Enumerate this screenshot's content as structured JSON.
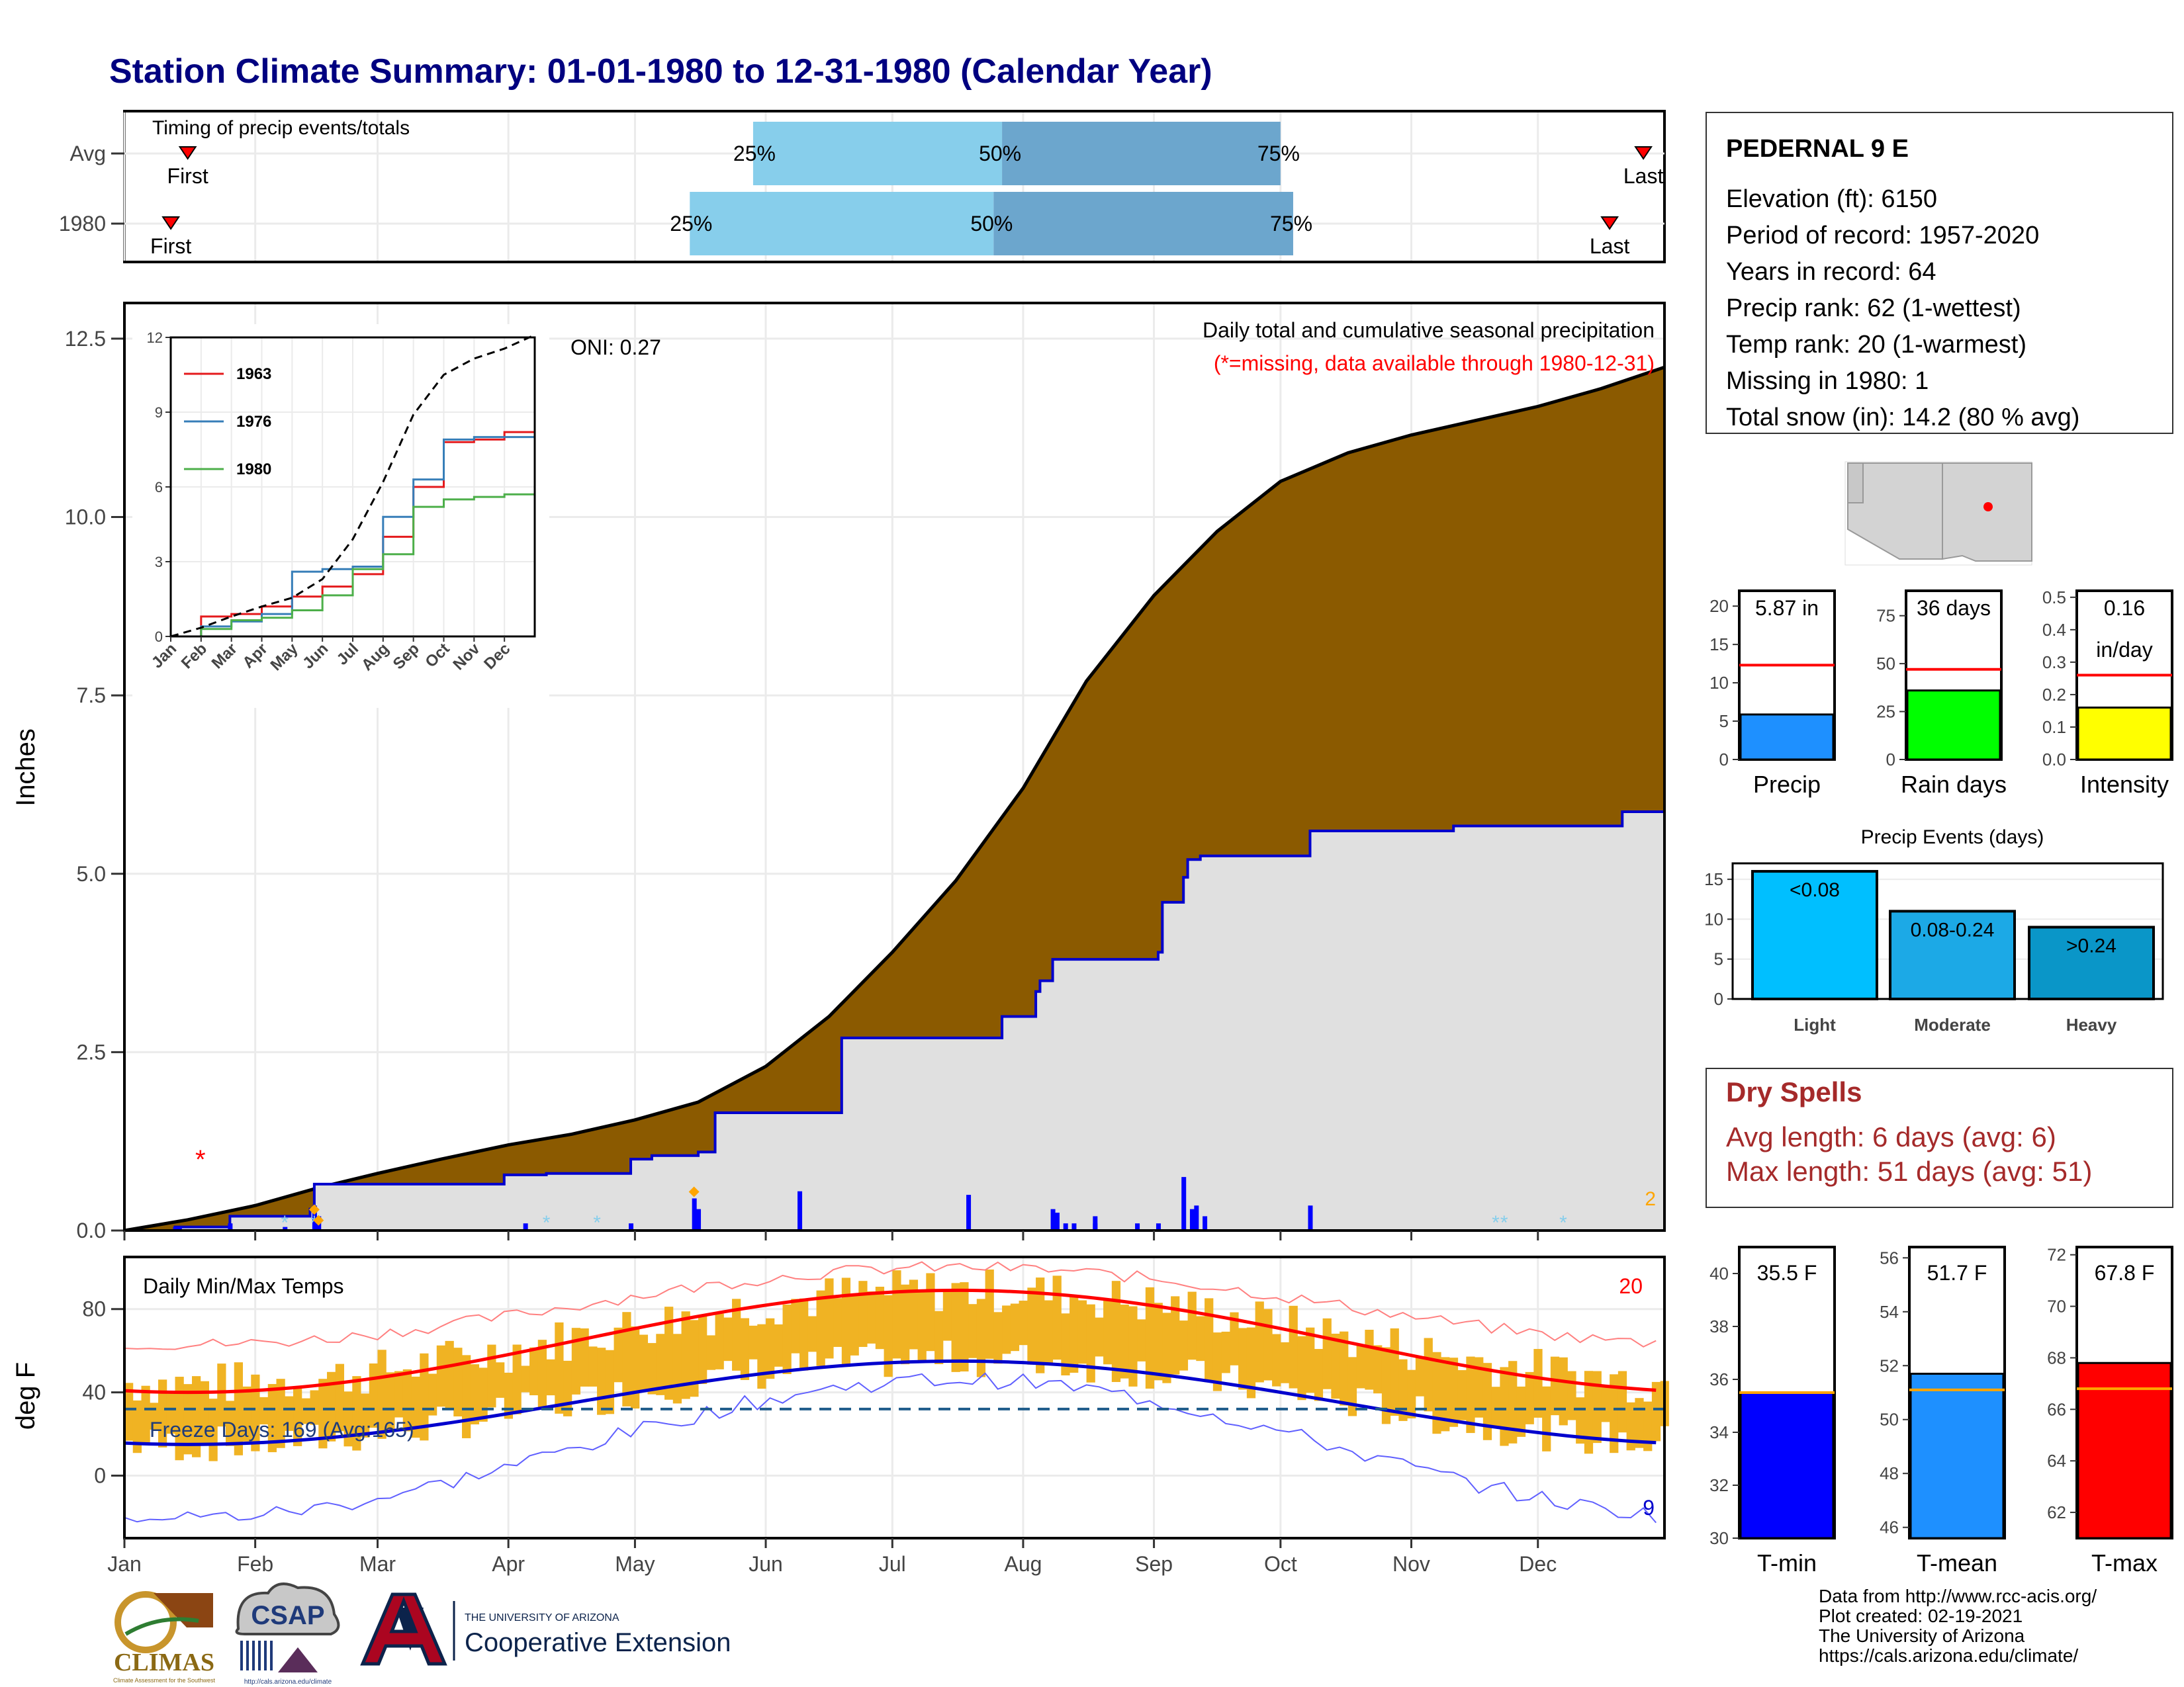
{
  "title": "Station Climate Summary: 01-01-1980 to 12-31-1980 (Calendar Year)",
  "timing": {
    "label": "Timing of precip events/totals",
    "rows": [
      {
        "name": "Avg",
        "first_day": 15,
        "p25_day": 149,
        "p50_day": 208,
        "p75_day": 274,
        "last_day": 360
      },
      {
        "name": "1980",
        "first_day": 11,
        "p25_day": 134,
        "p50_day": 206,
        "p75_day": 277,
        "last_day": 352
      }
    ],
    "first_label": "First",
    "last_label": "Last",
    "p25_label": "25%",
    "p50_label": "50%",
    "p75_label": "75%",
    "colors": {
      "q1": "#87ceeb",
      "q2": "#6ca6cd"
    }
  },
  "station": {
    "name": "PEDERNAL 9 E",
    "lines": [
      "Elevation (ft): 6150",
      "Period of record: 1957-2020",
      "Years in record: 64",
      "Precip rank: 62 (1-wettest)",
      "Temp rank: 20 (1-warmest)",
      "Missing in 1980: 1",
      "Total snow (in): 14.2 (80 % avg)"
    ]
  },
  "precip_panel": {
    "ylabel": "Inches",
    "yticks": [
      "0.0",
      "2.5",
      "5.0",
      "7.5",
      "10.0",
      "12.5"
    ],
    "ylim": [
      0,
      13.0
    ],
    "header": "Daily total and cumulative seasonal precipitation",
    "missing_note": "(*=missing, data available through 1980-12-31)",
    "oni": "ONI: 0.27",
    "corner_count": "2",
    "colors": {
      "avg_fill": "#8b5a00",
      "obs_fill": "#e0e0e0",
      "obs_line": "#0000cd",
      "daily": "#0000ff"
    },
    "avg_cumulative": {
      "days": [
        0,
        15,
        31,
        46,
        60,
        75,
        91,
        106,
        121,
        136,
        152,
        167,
        182,
        197,
        213,
        228,
        244,
        259,
        274,
        290,
        305,
        320,
        335,
        350,
        365
      ],
      "values": [
        0,
        0.15,
        0.35,
        0.6,
        0.8,
        1.0,
        1.2,
        1.35,
        1.55,
        1.8,
        2.3,
        3.0,
        3.9,
        4.9,
        6.2,
        7.7,
        8.9,
        9.8,
        10.5,
        10.9,
        11.15,
        11.35,
        11.55,
        11.8,
        12.1
      ]
    },
    "obs_cumulative": {
      "days": [
        0,
        12,
        25,
        38,
        44,
        45,
        60,
        90,
        100,
        120,
        125,
        136,
        140,
        160,
        170,
        185,
        200,
        207,
        208,
        210,
        213,
        216,
        217,
        220,
        245,
        246,
        251,
        252,
        255,
        256,
        281,
        282,
        315,
        355,
        365
      ],
      "values": [
        0,
        0.05,
        0.2,
        0.2,
        0.3,
        0.65,
        0.65,
        0.78,
        0.8,
        1.0,
        1.05,
        1.1,
        1.65,
        1.65,
        2.7,
        2.7,
        2.7,
        2.7,
        3.0,
        3.0,
        3.0,
        3.35,
        3.5,
        3.8,
        3.9,
        4.6,
        4.95,
        5.2,
        5.25,
        5.25,
        5.6,
        5.6,
        5.67,
        5.87,
        5.87
      ]
    },
    "daily_bars": {
      "days": [
        12,
        13,
        25,
        38,
        45,
        46,
        95,
        120,
        135,
        136,
        160,
        200,
        220,
        221,
        223,
        225,
        230,
        230,
        240,
        245,
        251,
        253,
        254,
        256,
        281
      ],
      "values": [
        0.05,
        0.05,
        0.1,
        0.05,
        0.35,
        0.2,
        0.1,
        0.1,
        0.45,
        0.3,
        0.55,
        0.5,
        0.3,
        0.25,
        0.1,
        0.1,
        0.1,
        0.2,
        0.1,
        0.1,
        0.75,
        0.3,
        0.35,
        0.2,
        0.35
      ]
    },
    "missing_marker": {
      "day": 18,
      "value": 1.0
    },
    "snow_markers": [
      {
        "day": 38
      },
      {
        "day": 45
      },
      {
        "day": 100
      },
      {
        "day": 112
      },
      {
        "day": 325
      },
      {
        "day": 327
      },
      {
        "day": 341
      }
    ],
    "orange_markers": [
      {
        "day": 45,
        "value": 0.2
      },
      {
        "day": 46,
        "value": 0.05
      },
      {
        "day": 135,
        "value": 0.45
      }
    ]
  },
  "inset": {
    "yticks": [
      "0",
      "3",
      "6",
      "9",
      "12"
    ],
    "months": [
      "Jan",
      "Feb",
      "Mar",
      "Apr",
      "May",
      "Jun",
      "Jul",
      "Aug",
      "Sep",
      "Oct",
      "Nov",
      "Dec"
    ],
    "series": [
      {
        "name": "1963",
        "color": "#e41a1c",
        "months": [
          0,
          1,
          2,
          3,
          4,
          5,
          6,
          7,
          8,
          9,
          10,
          11,
          12
        ],
        "values": [
          0,
          0.8,
          0.9,
          1.2,
          1.6,
          2.0,
          2.5,
          4.0,
          6.0,
          7.8,
          7.9,
          8.2,
          8.8
        ]
      },
      {
        "name": "1976",
        "color": "#377eb8",
        "months": [
          0,
          1,
          2,
          3,
          4,
          5,
          6,
          7,
          8,
          9,
          10,
          11,
          12
        ],
        "values": [
          0,
          0.4,
          0.6,
          0.9,
          2.6,
          2.7,
          2.8,
          4.8,
          6.3,
          7.9,
          8.0,
          8.0,
          8.0
        ]
      },
      {
        "name": "1980",
        "color": "#4daf4a",
        "months": [
          0,
          1,
          2,
          3,
          4,
          5,
          6,
          7,
          8,
          9,
          10,
          11,
          12
        ],
        "values": [
          0,
          0.3,
          0.65,
          0.75,
          1.05,
          1.65,
          2.7,
          3.3,
          5.2,
          5.5,
          5.6,
          5.7,
          5.87
        ]
      }
    ],
    "avg": {
      "months": [
        0,
        1,
        2,
        3,
        4,
        5,
        6,
        7,
        8,
        9,
        10,
        11,
        12
      ],
      "values": [
        0,
        0.35,
        0.8,
        1.2,
        1.55,
        2.3,
        3.9,
        6.2,
        8.9,
        10.5,
        11.15,
        11.55,
        12.1
      ]
    }
  },
  "gauges_precip": [
    {
      "label": "Precip",
      "value_text": "5.87 in",
      "value": 5.87,
      "avg": 12.3,
      "ymax": 22,
      "ticks": [
        "0",
        "5",
        "10",
        "15",
        "20"
      ],
      "tick_vals": [
        0,
        5,
        10,
        15,
        20
      ],
      "color": "#1e90ff"
    },
    {
      "label": "Rain days",
      "value_text": "36 days",
      "value": 36,
      "avg": 47,
      "ymax": 88,
      "ticks": [
        "0",
        "25",
        "50",
        "75"
      ],
      "tick_vals": [
        0,
        25,
        50,
        75
      ],
      "color": "#00ff00"
    },
    {
      "label": "Intensity",
      "value_text": "0.16",
      "value_text2": "in/day",
      "value": 0.16,
      "avg": 0.26,
      "ymax": 0.52,
      "ticks": [
        "0.0",
        "0.1",
        "0.2",
        "0.3",
        "0.4",
        "0.5"
      ],
      "tick_vals": [
        0,
        0.1,
        0.2,
        0.3,
        0.4,
        0.5
      ],
      "color": "#ffff00"
    }
  ],
  "precip_events": {
    "title": "Precip Events (days)",
    "categories": [
      "Light",
      "Moderate",
      "Heavy"
    ],
    "values": [
      16,
      11,
      9
    ],
    "labels": [
      "<0.08",
      "0.08-0.24",
      ">0.24"
    ],
    "colors": [
      "#00bfff",
      "#1ca9e6",
      "#0a96c8"
    ],
    "yticks": [
      "0",
      "5",
      "10",
      "15"
    ],
    "ymax": 17
  },
  "dry_spells": {
    "title": "Dry Spells",
    "avg_line": "Avg length: 6 days (avg: 6)",
    "max_line": "Max length: 51 days (avg: 51)"
  },
  "temp_panel": {
    "ylabel": "deg F",
    "label": "Daily Min/Max Temps",
    "yticks": [
      "0",
      "40",
      "80"
    ],
    "ylim": [
      -30,
      105
    ],
    "freeze_text": "Freeze Days: 169 (Avg:165)",
    "freeze_line": 32,
    "count_hot": "20",
    "count_cold": "9",
    "colors": {
      "bars": "#f0b323",
      "max_avg": "#ff0000",
      "min_avg": "#0000cd",
      "record_max": "#ff8080",
      "record_min": "#6060ff",
      "freeze": "#1f5c8b"
    }
  },
  "months": [
    "Jan",
    "Feb",
    "Mar",
    "Apr",
    "May",
    "Jun",
    "Jul",
    "Aug",
    "Sep",
    "Oct",
    "Nov",
    "Dec"
  ],
  "temp_gauges": [
    {
      "label": "T-min",
      "value_text": "35.5 F",
      "value": 35.5,
      "avg": 35.5,
      "ymin": 30,
      "ymax": 41,
      "ticks": [
        "30",
        "32",
        "34",
        "36",
        "38",
        "40"
      ],
      "tick_vals": [
        30,
        32,
        34,
        36,
        38,
        40
      ],
      "color": "#0000ff"
    },
    {
      "label": "T-mean",
      "value_text": "51.7 F",
      "value": 51.7,
      "avg": 51.1,
      "ymin": 45.6,
      "ymax": 56.4,
      "ticks": [
        "46",
        "48",
        "50",
        "52",
        "54",
        "56"
      ],
      "tick_vals": [
        46,
        48,
        50,
        52,
        54,
        56
      ],
      "color": "#1e90ff"
    },
    {
      "label": "T-max",
      "value_text": "67.8 F",
      "value": 67.8,
      "avg": 66.8,
      "ymin": 61,
      "ymax": 72.3,
      "ticks": [
        "62",
        "64",
        "66",
        "68",
        "70",
        "72"
      ],
      "tick_vals": [
        62,
        64,
        66,
        68,
        70,
        72
      ],
      "color": "#ff0000"
    }
  ],
  "footer": {
    "lines": [
      "Data from http://www.rcc-acis.org/",
      "Plot created: 02-19-2021",
      "The University of Arizona",
      "https://cals.arizona.edu/climate/"
    ],
    "climas": "CLIMAS",
    "climas_sub": "Climate Assessment for the Southwest",
    "csap": "CSAP",
    "csap_url": "http://cals.arizona.edu/climate",
    "ua_small": "THE UNIVERSITY OF ARIZONA",
    "ua_big": "Cooperative Extension"
  }
}
